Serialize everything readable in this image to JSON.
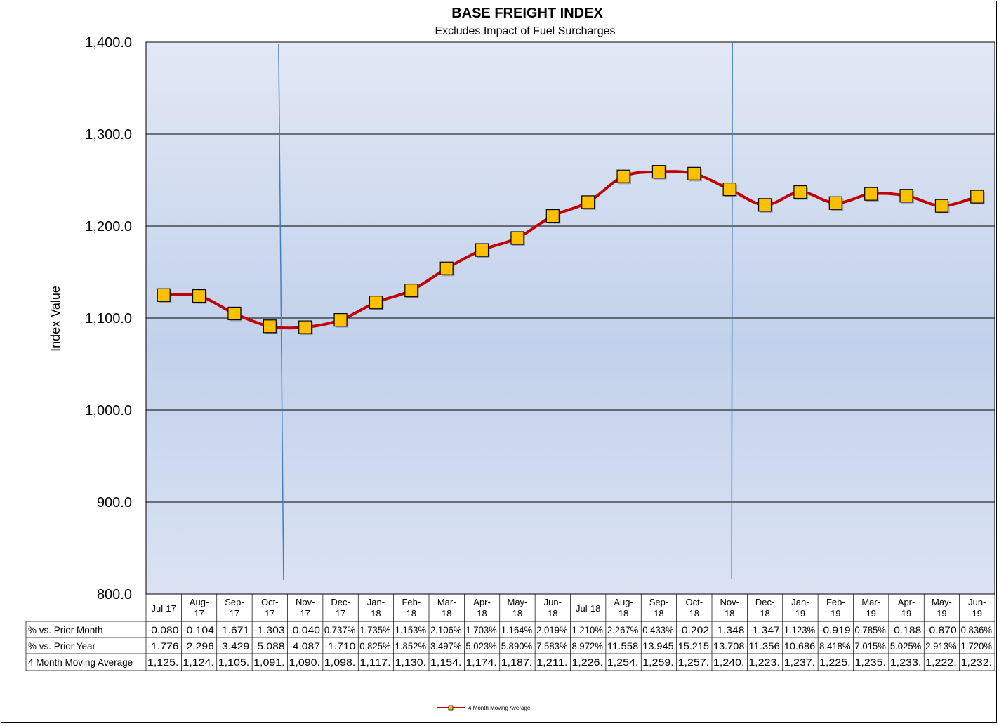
{
  "chart_data": {
    "type": "line",
    "title": "BASE FREIGHT INDEX",
    "subtitle": "Excludes Impact of Fuel Surcharges",
    "ylabel": "Index Value",
    "xlabel": "",
    "ylim": [
      800,
      1400
    ],
    "yticks": [
      "800.0",
      "900.0",
      "1,000.0",
      "1,100.0",
      "1,200.0",
      "1,300.0",
      "1,400.0"
    ],
    "grid": "horizontal",
    "legend": {
      "position": "bottom-center",
      "entries": [
        "4 Month Moving Average"
      ]
    },
    "categories": [
      [
        "Jul-17"
      ],
      [
        "Aug-",
        "17"
      ],
      [
        "Sep-",
        "17"
      ],
      [
        "Oct-",
        "17"
      ],
      [
        "Nov-",
        "17"
      ],
      [
        "Dec-",
        "17"
      ],
      [
        "Jan-",
        "18"
      ],
      [
        "Feb-",
        "18"
      ],
      [
        "Mar-",
        "18"
      ],
      [
        "Apr-",
        "18"
      ],
      [
        "May-",
        "18"
      ],
      [
        "Jun-",
        "18"
      ],
      [
        "Jul-18"
      ],
      [
        "Aug-",
        "18"
      ],
      [
        "Sep-",
        "18"
      ],
      [
        "Oct-",
        "18"
      ],
      [
        "Nov-",
        "18"
      ],
      [
        "Dec-",
        "18"
      ],
      [
        "Jan-",
        "19"
      ],
      [
        "Feb-",
        "19"
      ],
      [
        "Mar-",
        "19"
      ],
      [
        "Apr-",
        "19"
      ],
      [
        "May-",
        "19"
      ],
      [
        "Jun-",
        "19"
      ]
    ],
    "series": [
      {
        "name": "4 Month Moving Average",
        "values": [
          1125,
          1124,
          1105,
          1091,
          1090,
          1098,
          1117,
          1130,
          1154,
          1174,
          1187,
          1211,
          1226,
          1254,
          1259,
          1257,
          1240,
          1223,
          1237,
          1225,
          1235,
          1233,
          1222,
          1232
        ],
        "line_color": "#c00000",
        "marker_color": "#ffc000"
      }
    ],
    "reference_lines": [
      {
        "between": [
          "Oct-17",
          "Nov-17"
        ],
        "color": "#4a7ebb"
      },
      {
        "at": "Nov-18",
        "color": "#4a7ebb"
      }
    ],
    "table": {
      "rows": [
        {
          "label": "% vs. Prior Month",
          "cells": [
            "-0.080",
            "-0.104",
            "-1.671",
            "-1.303",
            "-0.040",
            "0.737%",
            "1.735%",
            "1.153%",
            "2.106%",
            "1.703%",
            "1.164%",
            "2.019%",
            "1.210%",
            "2.267%",
            "0.433%",
            "-0.202",
            "-1.348",
            "-1.347",
            "1.123%",
            "-0.919",
            "0.785%",
            "-0.188",
            "-0.870",
            "0.836%"
          ]
        },
        {
          "label": "% vs. Prior Year",
          "cells": [
            "-1.776",
            "-2.296",
            "-3.429",
            "-5.088",
            "-4.087",
            "-1.710",
            "0.825%",
            "1.852%",
            "3.497%",
            "5.023%",
            "5.890%",
            "7.583%",
            "8.972%",
            "11.558",
            "13.945",
            "15.215",
            "13.708",
            "11.356",
            "10.686",
            "8.418%",
            "7.015%",
            "5.025%",
            "2.913%",
            "1.720%"
          ]
        },
        {
          "label": "4 Month Moving Average",
          "cells": [
            "1,125.",
            "1,124.",
            "1,105.",
            "1,091.",
            "1,090.",
            "1,098.",
            "1,117.",
            "1,130.",
            "1,154.",
            "1,174.",
            "1,187.",
            "1,211.",
            "1,226.",
            "1,254.",
            "1,259.",
            "1,257.",
            "1,240.",
            "1,223.",
            "1,237.",
            "1,225.",
            "1,235.",
            "1,233.",
            "1,222.",
            "1,232."
          ]
        }
      ]
    }
  }
}
